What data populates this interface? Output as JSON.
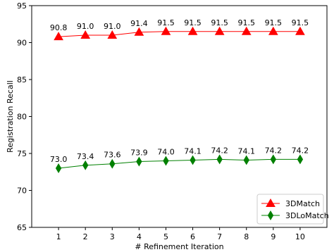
{
  "chart_data": {
    "type": "line",
    "title": "",
    "xlabel": "# Refinement Iteration",
    "ylabel": "Registration Recall",
    "x": [
      1,
      2,
      3,
      4,
      5,
      6,
      7,
      8,
      9,
      10
    ],
    "xlim": [
      0,
      11
    ],
    "ylim": [
      65,
      95
    ],
    "yticks": [
      65,
      70,
      75,
      80,
      85,
      90,
      95
    ],
    "grid": false,
    "legend_position": "bottom-right",
    "series": [
      {
        "name": "3DMatch",
        "values": [
          90.8,
          91.0,
          91.0,
          91.4,
          91.5,
          91.5,
          91.5,
          91.5,
          91.5,
          91.5
        ],
        "labels": [
          "90.8",
          "91.0",
          "91.0",
          "91.4",
          "91.5",
          "91.5",
          "91.5",
          "91.5",
          "91.5",
          "91.5"
        ],
        "color": "#ff0000",
        "marker": "triangle"
      },
      {
        "name": "3DLoMatch",
        "values": [
          73.0,
          73.4,
          73.6,
          73.9,
          74.0,
          74.1,
          74.2,
          74.1,
          74.2,
          74.2
        ],
        "labels": [
          "73.0",
          "73.4",
          "73.6",
          "73.9",
          "74.0",
          "74.1",
          "74.2",
          "74.1",
          "74.2",
          "74.2"
        ],
        "color": "#008000",
        "marker": "thin-diamond"
      }
    ]
  }
}
